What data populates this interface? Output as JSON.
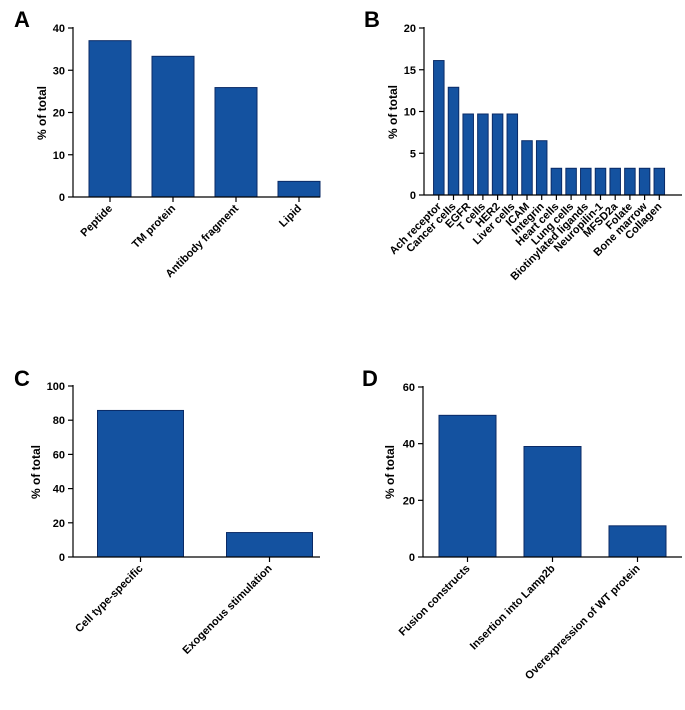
{
  "colors": {
    "bar_fill": "#1452a0",
    "bar_stroke": "#0a2a66",
    "axis": "#000000"
  },
  "chart_data": [
    {
      "panel": "A",
      "type": "bar",
      "ylabel": "% of total",
      "ylim": [
        0,
        40
      ],
      "yticks": [
        0,
        10,
        20,
        30,
        40
      ],
      "categories": [
        "Peptide",
        "TM protein",
        "Antibody fragment",
        "Lipid"
      ],
      "values": [
        37,
        33.3,
        25.9,
        3.7
      ],
      "grid": false
    },
    {
      "panel": "B",
      "type": "bar",
      "ylabel": "% of total",
      "ylim": [
        0,
        20
      ],
      "yticks": [
        0,
        5,
        10,
        15,
        20
      ],
      "categories": [
        "Ach receptor",
        "Cancer cells",
        "EGFR",
        "T cells",
        "HER2",
        "Liver cells",
        "ICAM",
        "Integrin",
        "Heart cells",
        "Lung cells",
        "Biotinylated ligands",
        "Neuropilin-1",
        "MFSD2a",
        "Folate",
        "Bone marrow",
        "Collagen"
      ],
      "values": [
        16.1,
        12.9,
        9.7,
        9.7,
        9.7,
        9.7,
        6.5,
        6.5,
        3.2,
        3.2,
        3.2,
        3.2,
        3.2,
        3.2,
        3.2,
        3.2
      ],
      "grid": false
    },
    {
      "panel": "C",
      "type": "bar",
      "ylabel": "% of total",
      "ylim": [
        0,
        100
      ],
      "yticks": [
        0,
        20,
        40,
        60,
        80,
        100
      ],
      "categories": [
        "Cell type-specific",
        "Exogenous stimulation"
      ],
      "values": [
        85.7,
        14.3
      ],
      "grid": false
    },
    {
      "panel": "D",
      "type": "bar",
      "ylabel": "% of total",
      "ylim": [
        0,
        60
      ],
      "yticks": [
        0,
        20,
        40,
        60
      ],
      "categories": [
        "Fusion constructs",
        "Insertion into Lamp2b",
        "Overexpression of WT protein"
      ],
      "values": [
        50,
        39,
        11
      ],
      "grid": false
    }
  ]
}
